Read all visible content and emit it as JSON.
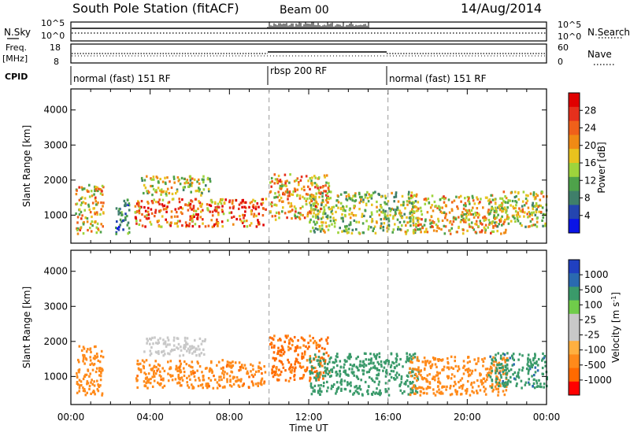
{
  "header": {
    "station": "South Pole Station (fitACF)",
    "beam": "Beam 00",
    "date": "14/Aug/2014"
  },
  "noise_panel": {
    "left_label": "N.Sky",
    "right_label": "N.Search",
    "left_ticks": [
      "10^5",
      "10^0"
    ],
    "right_ticks": [
      "10^5",
      "10^0"
    ]
  },
  "freq_panel": {
    "left_label": "Freq.",
    "left_unit": "[MHz]",
    "right_label": "Nave",
    "left_ticks": [
      "18",
      "8"
    ],
    "right_ticks": [
      "60",
      "0"
    ]
  },
  "cpid": {
    "label": "CPID",
    "segments": [
      {
        "text": "normal (fast) 151 RF",
        "start_hour": 0
      },
      {
        "text": "rbsp 200 RF",
        "start_hour": 10
      },
      {
        "text": "normal (fast) 151 RF",
        "start_hour": 16
      }
    ]
  },
  "colors": {
    "power_scale": [
      "#0a14e6",
      "#2445b0",
      "#3f7f6a",
      "#4ea24a",
      "#9ed43c",
      "#e8c21e",
      "#f08a14",
      "#f0601a",
      "#e6301c",
      "#e00000"
    ],
    "velocity_scale": [
      "#ff0000",
      "#ff6a00",
      "#ff8a1a",
      "#ffb040",
      "#c8c8c8",
      "#c8c8c8",
      "#70cc4a",
      "#3a9a6a",
      "#2a6ab0",
      "#2040c0"
    ]
  },
  "chart_data": [
    {
      "type": "heatmap",
      "name": "power",
      "ylabel": "Slant Range [km]",
      "x_range_hours": [
        0,
        24
      ],
      "ylim": [
        200,
        4600
      ],
      "yticks": [
        "1000",
        "2000",
        "3000",
        "4000"
      ],
      "colorbar": {
        "label": "Power [dB]",
        "ticks": [
          "4",
          "8",
          "12",
          "16",
          "20",
          "24",
          "28"
        ],
        "range": [
          0,
          32
        ]
      },
      "scatter_bands": [
        {
          "t0": 0.2,
          "t1": 1.6,
          "r0": 500,
          "r1": 1900,
          "value": 18
        },
        {
          "t0": 2.2,
          "t1": 3.0,
          "r0": 500,
          "r1": 1500,
          "value": 8
        },
        {
          "t0": 3.2,
          "t1": 9.8,
          "r0": 700,
          "r1": 1500,
          "value": 24
        },
        {
          "t0": 3.5,
          "t1": 7.0,
          "r0": 1600,
          "r1": 2150,
          "value": 16
        },
        {
          "t0": 10.0,
          "t1": 13.0,
          "r0": 900,
          "r1": 2200,
          "value": 20
        },
        {
          "t0": 12.0,
          "t1": 17.5,
          "r0": 500,
          "r1": 1700,
          "value": 14
        },
        {
          "t0": 17.0,
          "t1": 22.0,
          "r0": 500,
          "r1": 1600,
          "value": 18
        },
        {
          "t0": 21.0,
          "t1": 24.0,
          "r0": 700,
          "r1": 1700,
          "value": 16
        }
      ]
    },
    {
      "type": "heatmap",
      "name": "velocity",
      "ylabel": "Slant Range [km]",
      "xlabel": "Time UT",
      "x_range_hours": [
        0,
        24
      ],
      "ylim": [
        200,
        4600
      ],
      "yticks": [
        "1000",
        "2000",
        "3000",
        "4000"
      ],
      "xticks": [
        "00:00",
        "04:00",
        "08:00",
        "12:00",
        "16:00",
        "20:00",
        "00:00"
      ],
      "colorbar": {
        "label": "Velocity [m s",
        "label_sup": "-1",
        "label_tail": "]",
        "ticks": [
          "1000",
          "500",
          "100",
          "25",
          "-25",
          "-100",
          "-500",
          "-1000"
        ]
      },
      "scatter_bands": [
        {
          "t0": 0.2,
          "t1": 1.6,
          "r0": 500,
          "r1": 1900,
          "value": -200
        },
        {
          "t0": 3.6,
          "t1": 6.8,
          "r0": 1600,
          "r1": 2150,
          "value": 0
        },
        {
          "t0": 3.2,
          "t1": 9.8,
          "r0": 700,
          "r1": 1500,
          "value": -400
        },
        {
          "t0": 10.0,
          "t1": 13.0,
          "r0": 900,
          "r1": 2200,
          "value": -600
        },
        {
          "t0": 12.0,
          "t1": 17.5,
          "r0": 500,
          "r1": 1700,
          "value": 150
        },
        {
          "t0": 17.0,
          "t1": 22.0,
          "r0": 500,
          "r1": 1600,
          "value": -200
        },
        {
          "t0": 21.0,
          "t1": 24.0,
          "r0": 700,
          "r1": 1700,
          "value": 400
        }
      ]
    }
  ]
}
